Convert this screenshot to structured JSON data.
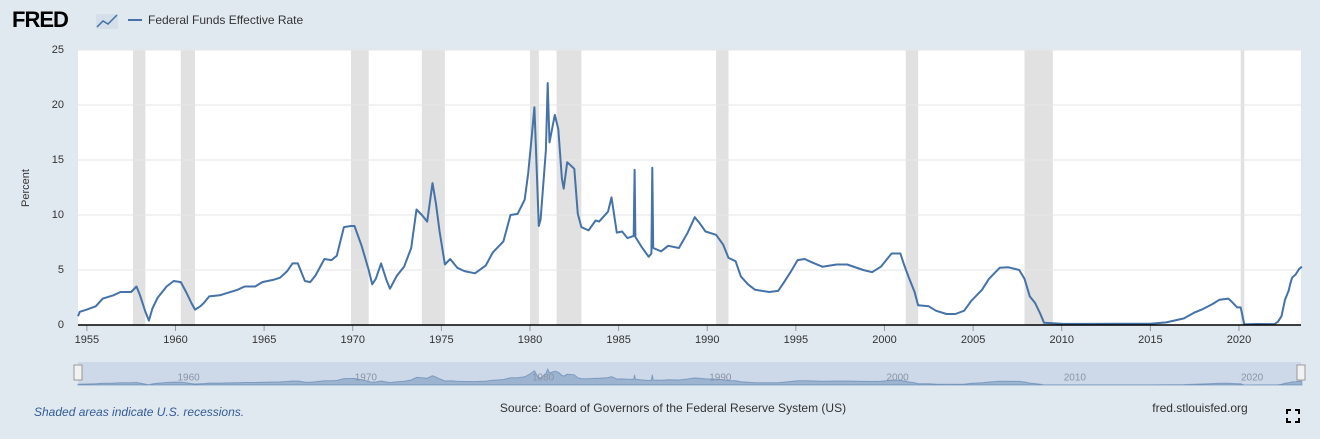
{
  "logo": "FRED",
  "chart_data": {
    "type": "line",
    "ylabel": "Percent",
    "series": [
      {
        "name": "Federal Funds Effective Rate",
        "color": "#4572a7",
        "x": [
          1954.5,
          1954.6,
          1955.0,
          1955.5,
          1955.9,
          1956.5,
          1956.9,
          1957.5,
          1957.8,
          1958.0,
          1958.3,
          1958.5,
          1958.7,
          1959.0,
          1959.5,
          1959.9,
          1960.3,
          1960.6,
          1960.9,
          1961.1,
          1961.4,
          1961.6,
          1961.9,
          1962.5,
          1962.9,
          1963.5,
          1963.9,
          1964.5,
          1964.9,
          1965.5,
          1965.9,
          1966.3,
          1966.6,
          1966.9,
          1967.3,
          1967.6,
          1967.9,
          1968.4,
          1968.8,
          1969.1,
          1969.5,
          1969.9,
          1970.1,
          1970.5,
          1970.9,
          1971.1,
          1971.3,
          1971.6,
          1971.9,
          1972.1,
          1972.5,
          1972.9,
          1973.3,
          1973.6,
          1973.9,
          1974.2,
          1974.5,
          1974.7,
          1974.9,
          1975.2,
          1975.5,
          1975.9,
          1976.3,
          1976.9,
          1977.5,
          1977.9,
          1978.5,
          1978.9,
          1979.3,
          1979.7,
          1979.9,
          1980.1,
          1980.25,
          1980.5,
          1980.6,
          1980.9,
          1981.0,
          1981.1,
          1981.4,
          1981.6,
          1981.8,
          1981.9,
          1982.1,
          1982.5,
          1982.7,
          1982.9,
          1983.3,
          1983.7,
          1983.9,
          1984.4,
          1984.6,
          1984.9,
          1985.2,
          1985.5,
          1985.85,
          1985.9,
          1985.95,
          1986.3,
          1986.7,
          1986.85,
          1986.9,
          1986.95,
          1987.4,
          1987.8,
          1988.4,
          1988.9,
          1989.3,
          1989.6,
          1989.9,
          1990.5,
          1990.9,
          1991.2,
          1991.6,
          1991.9,
          1992.3,
          1992.7,
          1993.5,
          1994.0,
          1994.3,
          1994.7,
          1995.1,
          1995.5,
          1995.9,
          1996.5,
          1997.3,
          1997.9,
          1998.8,
          1999.3,
          1999.8,
          2000.4,
          2000.9,
          2001.1,
          2001.4,
          2001.7,
          2001.9,
          2002.5,
          2002.9,
          2003.5,
          2004.0,
          2004.5,
          2004.9,
          2005.5,
          2005.9,
          2006.5,
          2007.0,
          2007.6,
          2007.9,
          2008.2,
          2008.5,
          2008.8,
          2009.0,
          2010.0,
          2011.5,
          2013.0,
          2015.0,
          2015.9,
          2016.9,
          2017.5,
          2017.9,
          2018.5,
          2018.9,
          2019.4,
          2019.6,
          2019.9,
          2020.1,
          2020.3,
          2021.0,
          2022.0,
          2022.2,
          2022.4,
          2022.6,
          2022.8,
          2022.9,
          2023.0,
          2023.2,
          2023.4,
          2023.55
        ],
        "values": [
          0.8,
          1.2,
          1.4,
          1.7,
          2.4,
          2.7,
          3.0,
          3.0,
          3.5,
          2.7,
          1.2,
          0.4,
          1.5,
          2.5,
          3.5,
          4.0,
          3.9,
          3.0,
          2.0,
          1.4,
          1.7,
          2.0,
          2.6,
          2.7,
          2.9,
          3.2,
          3.5,
          3.5,
          3.9,
          4.1,
          4.3,
          4.9,
          5.6,
          5.6,
          4.0,
          3.9,
          4.5,
          6.0,
          5.9,
          6.3,
          8.9,
          9.0,
          9.0,
          7.2,
          5.0,
          3.7,
          4.2,
          5.6,
          4.1,
          3.3,
          4.5,
          5.3,
          7.0,
          10.5,
          10.0,
          9.4,
          12.9,
          11.0,
          8.5,
          5.5,
          6.0,
          5.2,
          4.9,
          4.7,
          5.4,
          6.6,
          7.6,
          10.0,
          10.1,
          11.4,
          13.8,
          17.2,
          19.8,
          9.0,
          9.6,
          15.9,
          22.0,
          16.6,
          19.1,
          17.8,
          13.3,
          12.4,
          14.8,
          14.2,
          10.1,
          8.9,
          8.6,
          9.5,
          9.4,
          10.3,
          11.6,
          8.4,
          8.5,
          7.9,
          8.1,
          14.1,
          8.0,
          7.1,
          6.2,
          6.5,
          14.3,
          7.0,
          6.7,
          7.2,
          7.0,
          8.4,
          9.8,
          9.2,
          8.5,
          8.2,
          7.3,
          6.1,
          5.8,
          4.4,
          3.7,
          3.2,
          3.0,
          3.1,
          3.8,
          4.8,
          5.9,
          6.0,
          5.7,
          5.3,
          5.5,
          5.5,
          5.0,
          4.8,
          5.3,
          6.5,
          6.5,
          5.5,
          4.2,
          3.0,
          1.8,
          1.7,
          1.3,
          1.0,
          1.0,
          1.3,
          2.2,
          3.2,
          4.2,
          5.2,
          5.25,
          5.0,
          4.2,
          2.6,
          2.0,
          1.0,
          0.2,
          0.12,
          0.1,
          0.12,
          0.12,
          0.24,
          0.6,
          1.15,
          1.4,
          1.9,
          2.3,
          2.4,
          2.1,
          1.6,
          1.6,
          0.05,
          0.09,
          0.08,
          0.3,
          0.8,
          2.3,
          3.1,
          3.8,
          4.3,
          4.6,
          5.1,
          5.3
        ]
      }
    ],
    "xlim": [
      1954.5,
      2023.5
    ],
    "ylim": [
      0,
      25
    ],
    "xticks": [
      1955,
      1960,
      1965,
      1970,
      1975,
      1980,
      1985,
      1990,
      1995,
      2000,
      2005,
      2010,
      2015,
      2020
    ],
    "yticks": [
      0,
      5,
      10,
      15,
      20,
      25
    ],
    "grid": true,
    "recessions": [
      [
        1957.6,
        1958.3
      ],
      [
        1960.3,
        1961.1
      ],
      [
        1969.9,
        1970.9
      ],
      [
        1973.9,
        1975.2
      ],
      [
        1980.0,
        1980.5
      ],
      [
        1981.5,
        1982.9
      ],
      [
        1990.5,
        1991.2
      ],
      [
        2001.2,
        2001.9
      ],
      [
        2007.9,
        2009.5
      ],
      [
        2020.1,
        2020.3
      ]
    ],
    "navigator_ticks": [
      1960,
      1970,
      1980,
      1990,
      2000,
      2010,
      2020
    ],
    "recession_note": "Shaded areas indicate U.S. recessions.",
    "source": "Source: Board of Governors of the Federal Reserve System (US)",
    "site": "fred.stlouisfed.org"
  }
}
